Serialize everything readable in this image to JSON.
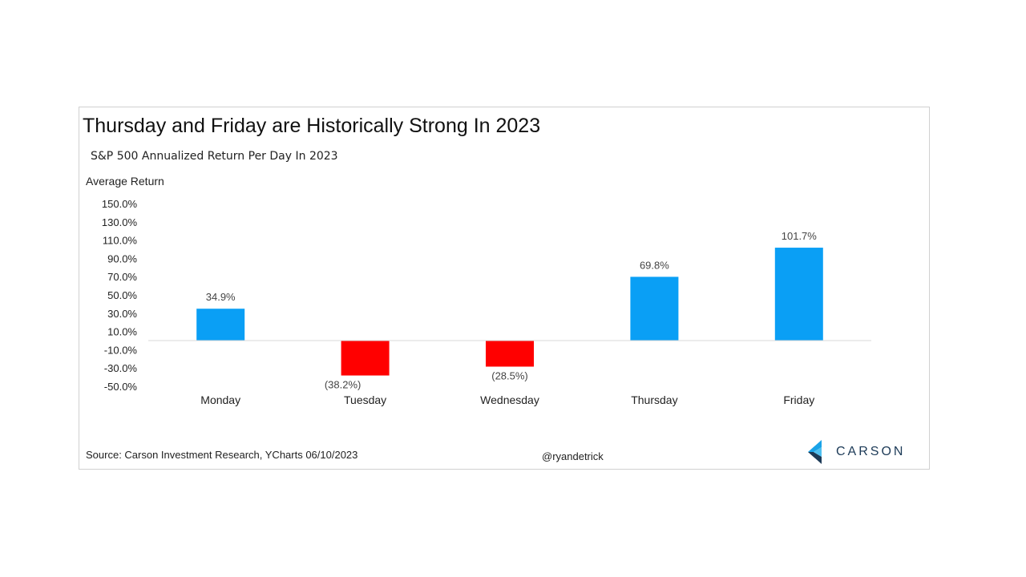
{
  "title": "Thursday and Friday are Historically Strong In 2023",
  "subtitle": "S&P 500 Annualized Return Per Day In 2023",
  "source": "Source: Carson Investment Research, YCharts 06/10/2023",
  "handle": "@ryandetrick",
  "logo_text": "CARSON",
  "colors": {
    "positive": "#0a9ff5",
    "negative": "#ff0000",
    "logo_dark": "#1c3a57",
    "logo_light": "#1aa3e8"
  },
  "chart_data": {
    "type": "bar",
    "ylabel": "Average Return",
    "categories": [
      "Monday",
      "Tuesday",
      "Wednesday",
      "Thursday",
      "Friday"
    ],
    "values": [
      34.9,
      -38.2,
      -28.5,
      69.8,
      101.7
    ],
    "data_labels": [
      "34.9%",
      "(38.2%)",
      "(28.5%)",
      "69.8%",
      "101.7%"
    ],
    "ylim": [
      -50,
      150
    ],
    "yticks": [
      150,
      130,
      110,
      90,
      70,
      50,
      30,
      10,
      -10,
      -30,
      -50
    ],
    "ytick_labels": [
      "150.0%",
      "130.0%",
      "110.0%",
      "90.0%",
      "70.0%",
      "50.0%",
      "30.0%",
      "10.0%",
      "-10.0%",
      "-30.0%",
      "-50.0%"
    ],
    "grid": false,
    "legend": "none"
  }
}
